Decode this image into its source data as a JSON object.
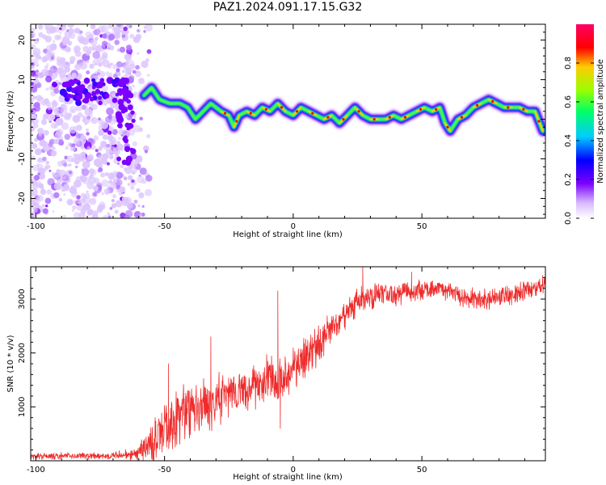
{
  "title": "PAZ1.2024.091.17.15.G32",
  "colors": {
    "axis": "#000000",
    "snr_line": "#ee2a2a",
    "spectrogram_background": "#ffffff"
  },
  "chart_data": [
    {
      "type": "heatmap",
      "name_in_figure": "spectrogram",
      "xlabel": "Height of straight line (km)",
      "ylabel": "Frequency (Hz)",
      "xlim": [
        -102,
        98
      ],
      "ylim": [
        -25,
        24
      ],
      "xticks": [
        -100,
        -50,
        0,
        50
      ],
      "yticks": [
        -20,
        -10,
        0,
        10,
        20
      ],
      "colorbar": {
        "label": "Normalized spectral amplitude",
        "range": [
          0.0,
          1.0
        ],
        "ticks": [
          "0.0",
          "0.2",
          "0.4",
          "0.6",
          "0.8"
        ],
        "colormap": [
          "#ffffff",
          "#c9a0ff",
          "#7b00ff",
          "#0000ff",
          "#00ccff",
          "#00ff66",
          "#99ff00",
          "#ffcc00",
          "#ff0000",
          "#ff0066"
        ]
      },
      "ridge": {
        "description": "peak frequency track",
        "x": [
          -58,
          -55,
          -52,
          -48,
          -44,
          -41,
          -38,
          -35,
          -32,
          -28,
          -25,
          -23,
          -21,
          -18,
          -15,
          -12,
          -9,
          -6,
          -3,
          0,
          3,
          6,
          9,
          12,
          15,
          18,
          21,
          24,
          27,
          30,
          33,
          36,
          39,
          42,
          45,
          48,
          51,
          54,
          57,
          59,
          61,
          64,
          67,
          70,
          73,
          76,
          79,
          82,
          85,
          88,
          91,
          94,
          97
        ],
        "y": [
          6,
          8,
          5,
          4,
          4,
          3,
          0,
          2,
          4,
          2,
          1,
          -2,
          1,
          2,
          1,
          3,
          2,
          4,
          2,
          1,
          3,
          2,
          1,
          0,
          1,
          -1,
          1,
          3,
          1,
          0,
          0,
          0,
          1,
          0,
          1,
          2,
          3,
          2,
          3,
          -1,
          -3,
          0,
          1,
          3,
          4,
          5,
          4,
          3,
          3,
          3,
          2,
          2,
          -3
        ],
        "peak_amplitude": 0.9
      },
      "noise_region_x": [
        -102,
        -56
      ]
    },
    {
      "type": "line",
      "name_in_figure": "snr",
      "xlabel": "Height of straight line (km)",
      "ylabel": "SNR (10 * v/v)",
      "xlim": [
        -102,
        98
      ],
      "ylim": [
        0,
        3600
      ],
      "xticks": [
        -100,
        -50,
        0,
        50
      ],
      "yticks": [
        1000,
        2000,
        3000
      ],
      "envelope": {
        "x": [
          -102,
          -90,
          -80,
          -70,
          -65,
          -60,
          -55,
          -50,
          -45,
          -40,
          -35,
          -30,
          -25,
          -20,
          -15,
          -10,
          -7,
          -5,
          0,
          5,
          10,
          15,
          20,
          25,
          30,
          35,
          40,
          45,
          50,
          55,
          60,
          65,
          70,
          75,
          80,
          85,
          90,
          95,
          98
        ],
        "mean": [
          80,
          90,
          90,
          100,
          120,
          150,
          300,
          550,
          800,
          950,
          1000,
          1100,
          1200,
          1300,
          1350,
          1550,
          1450,
          1500,
          1750,
          1950,
          2150,
          2450,
          2700,
          2950,
          3050,
          3100,
          3100,
          3150,
          3150,
          3200,
          3150,
          3050,
          3000,
          3000,
          3050,
          3050,
          3150,
          3200,
          3250
        ],
        "spread": [
          70,
          70,
          80,
          90,
          110,
          200,
          450,
          650,
          700,
          650,
          600,
          600,
          500,
          500,
          500,
          500,
          700,
          600,
          500,
          450,
          400,
          350,
          300,
          300,
          280,
          260,
          240,
          240,
          240,
          220,
          220,
          220,
          220,
          220,
          220,
          220,
          220,
          220,
          220
        ]
      },
      "highlights": [
        {
          "x": -48.5,
          "y": 1800
        },
        {
          "x": -32,
          "y": 2300
        },
        {
          "x": -6,
          "y": 3150
        },
        {
          "x": -5,
          "y": 600
        },
        {
          "x": 27,
          "y": 3600
        },
        {
          "x": 46,
          "y": 3500
        }
      ]
    }
  ]
}
